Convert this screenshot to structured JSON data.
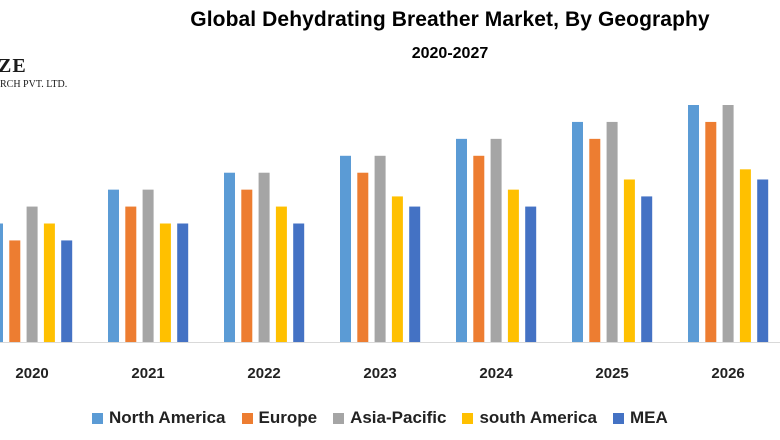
{
  "chart_data": {
    "type": "bar",
    "title": "Global Dehydrating Breather Market, By Geography",
    "subtitle": "2020-2027",
    "categories": [
      "2020",
      "2021",
      "2022",
      "2023",
      "2024",
      "2025",
      "2026"
    ],
    "series": [
      {
        "name": "North America",
        "color": "#5b9bd5",
        "values": [
          3.5,
          4.5,
          5.0,
          5.5,
          6.0,
          6.5,
          7.0
        ]
      },
      {
        "name": "Europe",
        "color": "#ed7d31",
        "values": [
          3.0,
          4.0,
          4.5,
          5.0,
          5.5,
          6.0,
          6.5
        ]
      },
      {
        "name": "Asia-Pacific",
        "color": "#a5a5a5",
        "values": [
          4.0,
          4.5,
          5.0,
          5.5,
          6.0,
          6.5,
          7.0
        ]
      },
      {
        "name": "south America",
        "color": "#ffc000",
        "values": [
          3.5,
          3.5,
          4.0,
          4.3,
          4.5,
          4.8,
          5.1
        ]
      },
      {
        "name": "MEA",
        "color": "#4472c4",
        "values": [
          3.0,
          3.5,
          3.5,
          4.0,
          4.0,
          4.3,
          4.8
        ]
      }
    ],
    "ylim": [
      0,
      7
    ],
    "grid": false,
    "legend_position": "bottom"
  },
  "logo": {
    "line1": "ZE",
    "line2": "RCH PVT. LTD."
  }
}
